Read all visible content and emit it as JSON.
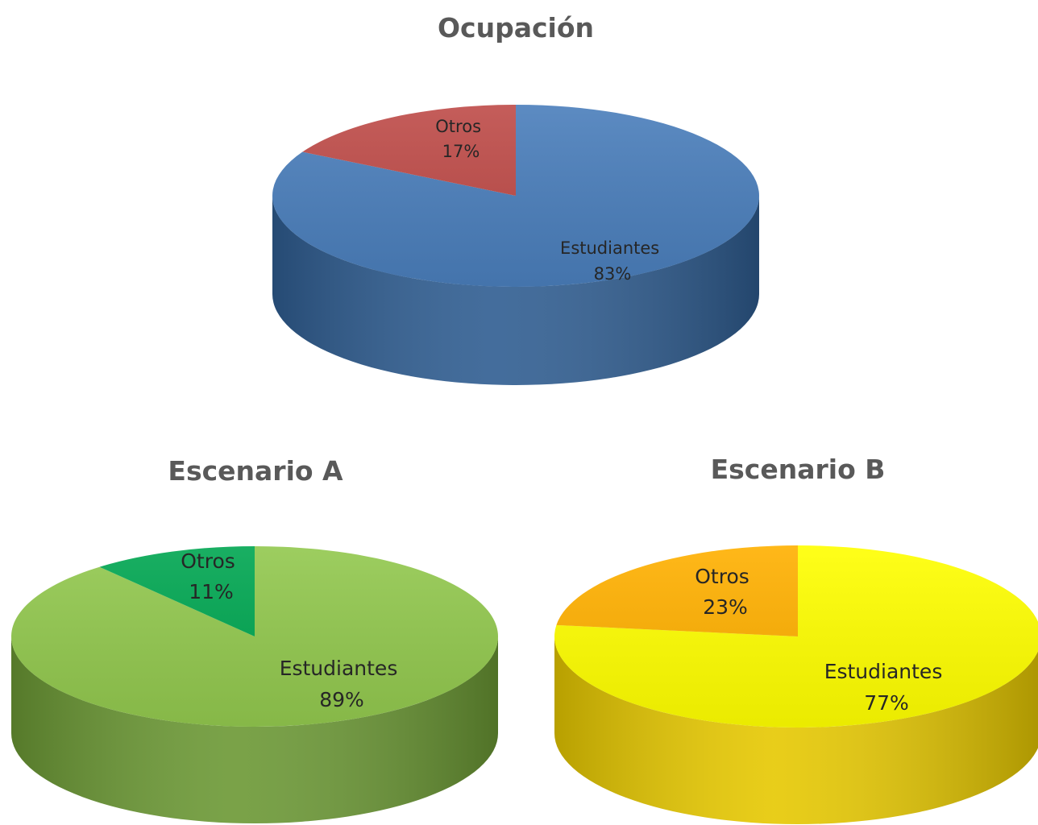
{
  "chart_data": [
    {
      "type": "pie",
      "title": "Ocupación",
      "categories": [
        "Estudiantes",
        "Otros"
      ],
      "values": [
        83,
        17
      ],
      "value_labels": [
        "83%",
        "17%"
      ],
      "colors": {
        "top": [
          "#4a7ebb",
          "#be4b48"
        ],
        "side": [
          "#2f5d91",
          "#8c3330"
        ]
      },
      "style": "3d-pie",
      "legend": "none"
    },
    {
      "type": "pie",
      "title": "Escenario A",
      "categories": [
        "Estudiantes",
        "Otros"
      ],
      "values": [
        89,
        11
      ],
      "value_labels": [
        "89%",
        "11%"
      ],
      "colors": {
        "top": [
          "#92c84e",
          "#00a651"
        ],
        "side": [
          "#6b9834",
          "#00793a"
        ]
      },
      "style": "3d-pie",
      "legend": "none"
    },
    {
      "type": "pie",
      "title": "Escenario B",
      "categories": [
        "Estudiantes",
        "Otros"
      ],
      "values": [
        77,
        23
      ],
      "value_labels": [
        "77%",
        "23%"
      ],
      "colors": {
        "top": [
          "#ffff00",
          "#ffb000"
        ],
        "side": [
          "#e6c800",
          "#cc8a00"
        ]
      },
      "style": "3d-pie",
      "legend": "none"
    }
  ]
}
